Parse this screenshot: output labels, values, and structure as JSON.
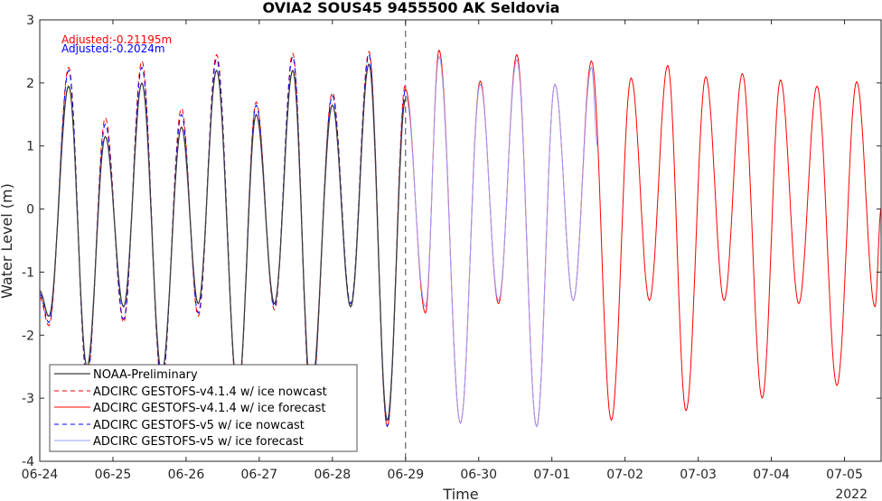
{
  "chart_data": {
    "type": "line",
    "title": "OVIA2 SOUS45 9455500 AK Seldovia",
    "xlabel": "Time",
    "ylabel": "Water Level (m)",
    "year_label": "2022",
    "x_ticks": [
      "06-24",
      "06-25",
      "06-26",
      "06-27",
      "06-28",
      "06-29",
      "06-30",
      "07-01",
      "07-02",
      "07-03",
      "07-04",
      "07-05"
    ],
    "xlim": [
      "06-24 00:00",
      "07-05 12:00"
    ],
    "ylim": [
      -4,
      3
    ],
    "y_ticks": [
      "-4",
      "-3",
      "-2",
      "-1",
      "0",
      "1",
      "2",
      "3"
    ],
    "grid": false,
    "forecast_start": "06-29 00:00",
    "annotations": [
      {
        "text": "Adjusted:-0.21195m",
        "color": "#ff0000"
      },
      {
        "text": "Adjusted:-0.2024m",
        "color": "#0000ff"
      }
    ],
    "legend_position": "bottom-left",
    "series": [
      {
        "name": "NOAA-Preliminary",
        "color": "#3c3c3c",
        "style": "solid",
        "range": [
          "06-24 00:00",
          "06-29 00:00"
        ]
      },
      {
        "name": "ADCIRC GESTOFS-v4.1.4 w/ ice nowcast",
        "color": "#ff0000",
        "style": "dashed",
        "range": [
          "06-24 00:00",
          "06-29 00:00"
        ]
      },
      {
        "name": "ADCIRC GESTOFS-v4.1.4 w/ ice forecast",
        "color": "#ff0000",
        "style": "solid",
        "range": [
          "06-29 00:00",
          "07-05 12:00"
        ]
      },
      {
        "name": "ADCIRC GESTOFS-v5 w/ ice nowcast",
        "color": "#0000ff",
        "style": "dashed",
        "range": [
          "06-24 00:00",
          "06-29 00:00"
        ]
      },
      {
        "name": "ADCIRC GESTOFS-v5 w/ ice forecast",
        "color": "#9c9cff",
        "style": "solid",
        "range": [
          "06-29 00:00",
          "07-01 12:00"
        ]
      }
    ],
    "extrema": {
      "obs": [
        [
          "06-24 00:00",
          -1.3
        ],
        [
          "06-24 03:00",
          -1.7
        ],
        [
          "06-24 09:30",
          1.95
        ],
        [
          "06-24 15:30",
          -2.5
        ],
        [
          "06-24 21:30",
          1.15
        ],
        [
          "06-25 03:30",
          -1.55
        ],
        [
          "06-25 09:30",
          2.0
        ],
        [
          "06-25 16:00",
          -2.6
        ],
        [
          "06-25 22:30",
          1.3
        ],
        [
          "06-26 04:00",
          -1.5
        ],
        [
          "06-26 10:00",
          2.2
        ],
        [
          "06-26 17:00",
          -2.9
        ],
        [
          "06-26 23:00",
          1.5
        ],
        [
          "06-27 05:00",
          -1.5
        ],
        [
          "06-27 11:00",
          2.2
        ],
        [
          "06-27 17:00",
          -2.9
        ],
        [
          "06-28 00:00",
          1.65
        ],
        [
          "06-28 06:00",
          -1.55
        ],
        [
          "06-28 12:00",
          2.3
        ],
        [
          "06-28 18:00",
          -3.35
        ],
        [
          "06-29 00:00",
          1.75
        ]
      ],
      "v414_nowcast": [
        [
          "06-24 00:00",
          -1.4
        ],
        [
          "06-24 03:00",
          -1.85
        ],
        [
          "06-24 09:30",
          2.25
        ],
        [
          "06-24 15:30",
          -2.7
        ],
        [
          "06-24 21:30",
          1.45
        ],
        [
          "06-25 03:30",
          -1.8
        ],
        [
          "06-25 09:30",
          2.35
        ],
        [
          "06-25 16:00",
          -2.8
        ],
        [
          "06-25 22:30",
          1.6
        ],
        [
          "06-26 04:00",
          -1.7
        ],
        [
          "06-26 10:00",
          2.45
        ],
        [
          "06-26 17:00",
          -3.0
        ],
        [
          "06-26 23:00",
          1.7
        ],
        [
          "06-27 05:00",
          -1.6
        ],
        [
          "06-27 11:00",
          2.47
        ],
        [
          "06-27 17:00",
          -3.1
        ],
        [
          "06-28 00:00",
          1.85
        ],
        [
          "06-28 06:00",
          -1.55
        ],
        [
          "06-28 12:00",
          2.5
        ],
        [
          "06-28 18:00",
          -3.45
        ],
        [
          "06-29 00:00",
          2.0
        ]
      ],
      "v5_nowcast": [
        [
          "06-24 00:00",
          -1.35
        ],
        [
          "06-24 03:00",
          -1.8
        ],
        [
          "06-24 09:30",
          2.2
        ],
        [
          "06-24 15:30",
          -2.65
        ],
        [
          "06-24 21:30",
          1.35
        ],
        [
          "06-25 03:30",
          -1.75
        ],
        [
          "06-25 09:30",
          2.25
        ],
        [
          "06-25 16:00",
          -2.75
        ],
        [
          "06-25 22:30",
          1.5
        ],
        [
          "06-26 04:00",
          -1.65
        ],
        [
          "06-26 10:00",
          2.38
        ],
        [
          "06-26 17:00",
          -2.95
        ],
        [
          "06-26 23:00",
          1.65
        ],
        [
          "06-27 05:00",
          -1.55
        ],
        [
          "06-27 11:00",
          2.42
        ],
        [
          "06-27 17:00",
          -3.05
        ],
        [
          "06-28 00:00",
          1.8
        ],
        [
          "06-28 06:00",
          -1.5
        ],
        [
          "06-28 12:00",
          2.45
        ],
        [
          "06-28 18:00",
          -3.45
        ],
        [
          "06-29 00:00",
          1.9
        ]
      ],
      "v414_forecast": [
        [
          "06-29 00:00",
          1.9
        ],
        [
          "06-29 06:30",
          -1.65
        ],
        [
          "06-29 11:00",
          2.52
        ],
        [
          "06-29 18:00",
          -3.4
        ],
        [
          "06-30 00:30",
          2.03
        ],
        [
          "06-30 06:30",
          -1.5
        ],
        [
          "06-30 12:30",
          2.45
        ],
        [
          "06-30 19:00",
          -3.45
        ],
        [
          "07-01 01:00",
          1.98
        ],
        [
          "07-01 07:00",
          -1.45
        ],
        [
          "07-01 13:00",
          2.35
        ],
        [
          "07-01 19:30",
          -3.35
        ],
        [
          "07-02 02:00",
          2.08
        ],
        [
          "07-02 08:00",
          -1.45
        ],
        [
          "07-02 14:00",
          2.28
        ],
        [
          "07-02 20:00",
          -3.2
        ],
        [
          "07-03 02:30",
          2.1
        ],
        [
          "07-03 08:30",
          -1.45
        ],
        [
          "07-03 14:30",
          2.15
        ],
        [
          "07-03 21:00",
          -3.0
        ],
        [
          "07-04 03:00",
          2.05
        ],
        [
          "07-04 09:00",
          -1.5
        ],
        [
          "07-04 15:00",
          1.95
        ],
        [
          "07-04 21:30",
          -2.8
        ],
        [
          "07-05 04:00",
          2.02
        ],
        [
          "07-05 10:00",
          -1.55
        ],
        [
          "07-05 12:00",
          0.0
        ]
      ],
      "v5_forecast": [
        [
          "06-29 00:00",
          1.8
        ],
        [
          "06-29 06:30",
          -1.55
        ],
        [
          "06-29 11:00",
          2.42
        ],
        [
          "06-29 18:00",
          -3.4
        ],
        [
          "06-30 00:30",
          1.98
        ],
        [
          "06-30 06:30",
          -1.45
        ],
        [
          "06-30 12:30",
          2.37
        ],
        [
          "06-30 19:00",
          -3.45
        ],
        [
          "07-01 01:00",
          1.98
        ],
        [
          "07-01 07:00",
          -1.45
        ],
        [
          "07-01 13:00",
          2.25
        ],
        [
          "07-01 15:00",
          1.0
        ]
      ]
    }
  }
}
